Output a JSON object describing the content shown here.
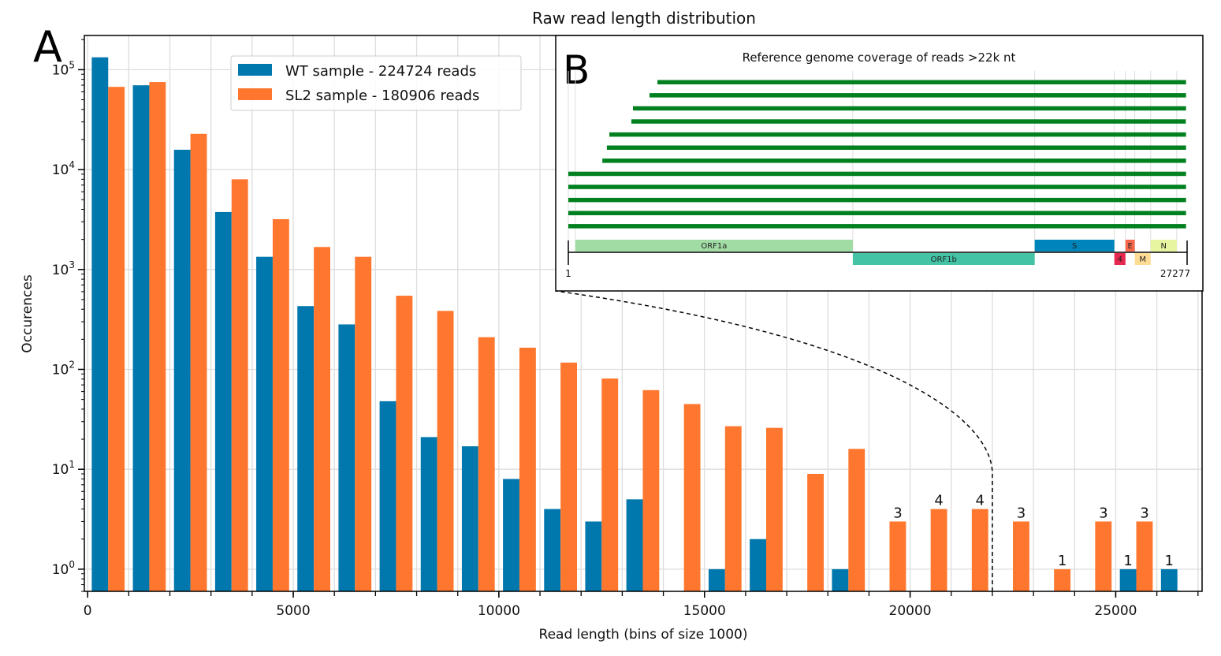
{
  "chart_data": {
    "type": "bar",
    "title": "Raw read length distribution",
    "panel_label": "A",
    "xlabel": "Read length (bins of size 1000)",
    "ylabel": "Occurences",
    "yscale": "log",
    "ylim": [
      0.6,
      220000
    ],
    "xlim": [
      -80,
      27100
    ],
    "grid": true,
    "bin_size": 1000,
    "x_ticks": [
      0,
      5000,
      10000,
      15000,
      20000,
      25000
    ],
    "y_ticks": [
      {
        "value": 1,
        "base": "10",
        "exp": "0"
      },
      {
        "value": 10,
        "base": "10",
        "exp": "1"
      },
      {
        "value": 100,
        "base": "10",
        "exp": "2"
      },
      {
        "value": 1000,
        "base": "10",
        "exp": "3"
      },
      {
        "value": 10000,
        "base": "10",
        "exp": "4"
      },
      {
        "value": 100000,
        "base": "10",
        "exp": "5"
      }
    ],
    "legend_position": "top-center-left",
    "categories": [
      0,
      1000,
      2000,
      3000,
      4000,
      5000,
      6000,
      7000,
      8000,
      9000,
      10000,
      11000,
      12000,
      13000,
      14000,
      15000,
      16000,
      17000,
      18000,
      19000,
      20000,
      21000,
      22000,
      23000,
      24000,
      25000,
      26000
    ],
    "series": [
      {
        "name": "WT sample - 224724 reads",
        "color": "#0077ad",
        "values": [
          133000,
          69800,
          15800,
          3760,
          1340,
          430,
          282,
          48,
          21,
          17,
          8,
          4,
          3,
          5,
          null,
          1,
          2,
          null,
          1,
          null,
          null,
          null,
          null,
          null,
          null,
          1,
          1
        ],
        "labeled_bins": [
          25000,
          26000
        ]
      },
      {
        "name": "SL2 sample - 180906 reads",
        "color": "#ff772e",
        "values": [
          67300,
          75200,
          22800,
          8000,
          3190,
          1680,
          1340,
          546,
          385,
          210,
          165,
          117,
          81,
          62,
          45,
          27,
          26,
          9,
          16,
          3,
          4,
          4,
          3,
          1,
          3,
          3,
          null
        ],
        "labeled_bins": [
          19000,
          20000,
          21000,
          22000,
          23000,
          24000,
          25000
        ]
      }
    ],
    "annotation": {
      "type": "dashed-connector",
      "from_x": 22000,
      "to": "inset-B",
      "description": "reads >22k nt"
    }
  },
  "inset": {
    "panel_label": "B",
    "title": "Reference genome coverage of reads >22k nt",
    "genome_start_label": "1",
    "genome_end_label": "27277",
    "genome_length": 27277,
    "read_color": "#00801f",
    "reads": [
      {
        "start": 3930,
        "end": 27230
      },
      {
        "start": 3580,
        "end": 27230
      },
      {
        "start": 2850,
        "end": 27230
      },
      {
        "start": 2780,
        "end": 27220
      },
      {
        "start": 1810,
        "end": 27230
      },
      {
        "start": 1700,
        "end": 27230
      },
      {
        "start": 1500,
        "end": 27230
      },
      {
        "start": 1,
        "end": 27230
      },
      {
        "start": 1,
        "end": 27230
      },
      {
        "start": 1,
        "end": 27230
      },
      {
        "start": 1,
        "end": 27230
      },
      {
        "start": 1,
        "end": 27230
      }
    ],
    "genes": [
      {
        "name": "ORF1a",
        "start": 310,
        "end": 12540,
        "track": "top",
        "color": "#a1dca5"
      },
      {
        "name": "ORF1b",
        "start": 12540,
        "end": 20560,
        "track": "bottom",
        "color": "#44c3a5"
      },
      {
        "name": "S",
        "start": 20560,
        "end": 24070,
        "track": "top",
        "color": "#0085ba"
      },
      {
        "name": "4",
        "start": 24070,
        "end": 24560,
        "track": "bottom",
        "color": "#e6284f"
      },
      {
        "name": "E",
        "start": 24560,
        "end": 24970,
        "track": "top",
        "color": "#f8694c"
      },
      {
        "name": "M",
        "start": 24970,
        "end": 25670,
        "track": "bottom",
        "color": "#fedc94"
      },
      {
        "name": "N",
        "start": 25670,
        "end": 26820,
        "track": "top",
        "color": "#e7f4a0"
      }
    ]
  }
}
